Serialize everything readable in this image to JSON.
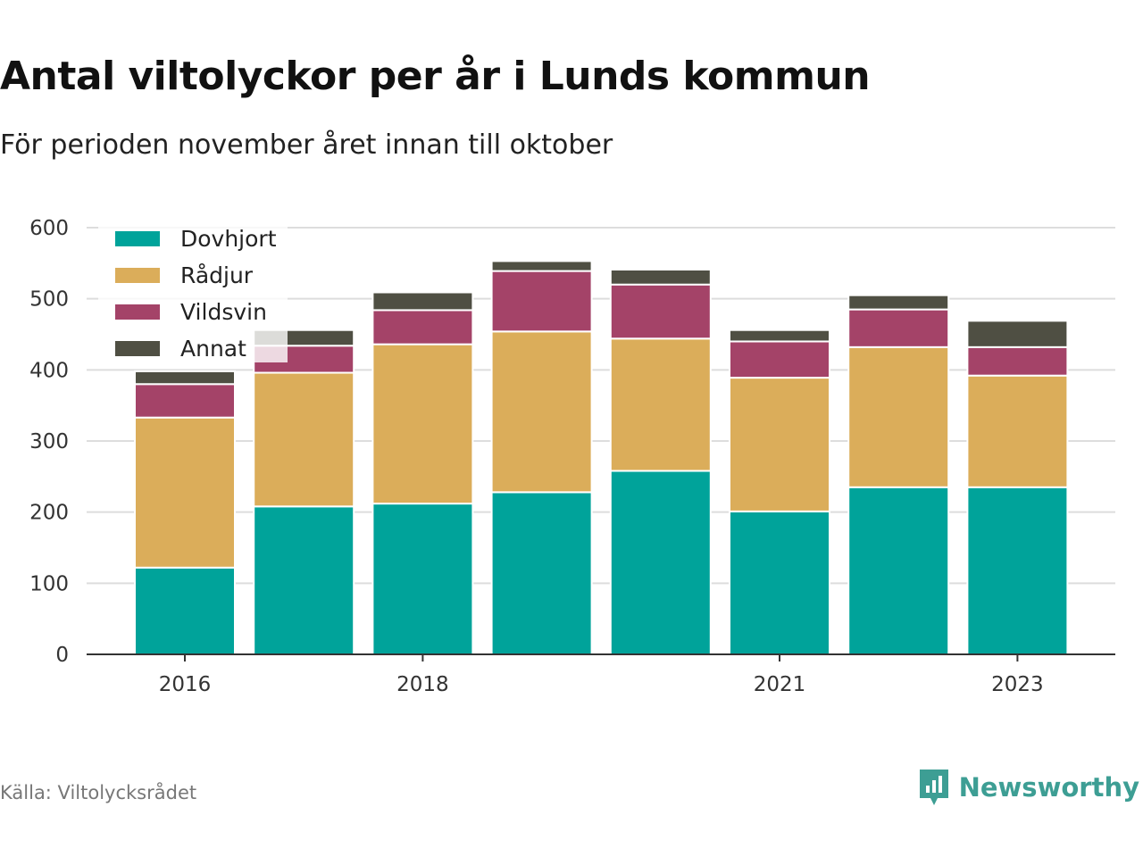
{
  "title": "Antal viltolyckor per år i Lunds kommun",
  "subtitle": "För perioden november året innan till oktober",
  "source": "Källa: Viltolycksrådet",
  "brand": "Newsworthy",
  "chart_data": {
    "type": "bar",
    "stacked": true,
    "categories": [
      "2016",
      "2017",
      "2018",
      "2019",
      "2020",
      "2021",
      "2022",
      "2023"
    ],
    "x_tick_labels": [
      "2016",
      "2018",
      "2021",
      "2023"
    ],
    "ylim": [
      0,
      600
    ],
    "yticks": [
      0,
      100,
      200,
      300,
      400,
      500,
      600
    ],
    "grid": true,
    "legend_position": "top-left",
    "series": [
      {
        "name": "Dovhjort",
        "color": "#00a39a",
        "values": [
          122,
          208,
          212,
          228,
          258,
          201,
          235,
          235
        ]
      },
      {
        "name": "Rådjur",
        "color": "#dbad5a",
        "values": [
          211,
          188,
          224,
          226,
          186,
          188,
          197,
          157
        ]
      },
      {
        "name": "Vildsvin",
        "color": "#a44368",
        "values": [
          47,
          38,
          48,
          85,
          76,
          51,
          53,
          40
        ]
      },
      {
        "name": "Annat",
        "color": "#4f4f43",
        "values": [
          18,
          22,
          25,
          14,
          21,
          16,
          20,
          37
        ]
      }
    ]
  }
}
